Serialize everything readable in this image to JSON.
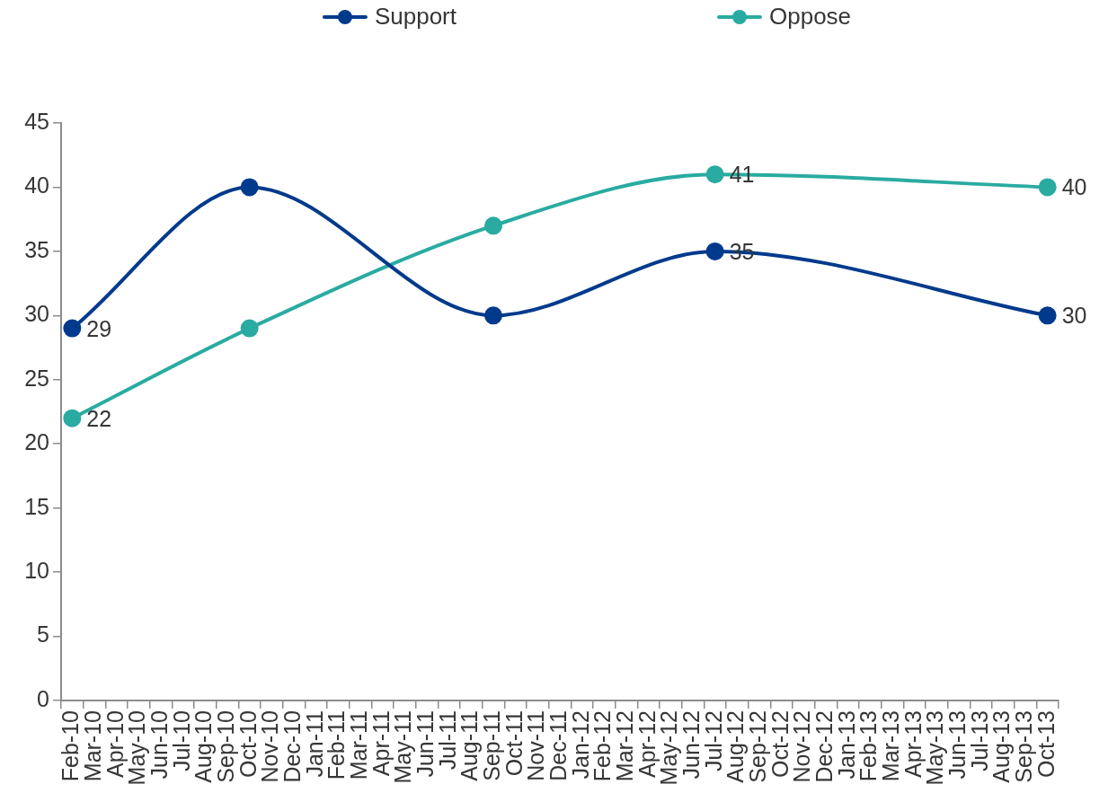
{
  "chart_data": {
    "type": "line",
    "categories": [
      "Feb-10",
      "Mar-10",
      "Apr-10",
      "May-10",
      "Jun-10",
      "Jul-10",
      "Aug-10",
      "Sep-10",
      "Oct-10",
      "Nov-10",
      "Dec-10",
      "Jan-11",
      "Feb-11",
      "Mar-11",
      "Apr-11",
      "May-11",
      "Jun-11",
      "Jul-11",
      "Aug-11",
      "Sep-11",
      "Oct-11",
      "Nov-11",
      "Dec-11",
      "Jan-12",
      "Feb-12",
      "Mar-12",
      "Apr-12",
      "May-12",
      "Jun-12",
      "Jul-12",
      "Aug-12",
      "Sep-12",
      "Oct-12",
      "Nov-12",
      "Dec-12",
      "Jan-13",
      "Feb-13",
      "Mar-13",
      "Apr-13",
      "May-13",
      "Jun-13",
      "Jul-13",
      "Aug-13",
      "Sep-13",
      "Oct-13"
    ],
    "series": [
      {
        "name": "Support",
        "color": "#003a8c",
        "values": [
          29,
          null,
          null,
          null,
          null,
          null,
          null,
          null,
          40,
          null,
          null,
          null,
          null,
          null,
          null,
          null,
          null,
          null,
          null,
          30,
          null,
          null,
          null,
          null,
          null,
          null,
          null,
          null,
          null,
          35,
          null,
          null,
          null,
          null,
          null,
          null,
          null,
          null,
          null,
          null,
          null,
          null,
          null,
          null,
          30
        ],
        "value_labels": [
          "29",
          null,
          null,
          null,
          null,
          null,
          null,
          null,
          null,
          null,
          null,
          null,
          null,
          null,
          null,
          null,
          null,
          null,
          null,
          null,
          null,
          null,
          null,
          null,
          null,
          null,
          null,
          null,
          null,
          "35",
          null,
          null,
          null,
          null,
          null,
          null,
          null,
          null,
          null,
          null,
          null,
          null,
          null,
          null,
          "30"
        ]
      },
      {
        "name": "Oppose",
        "color": "#2aaba1",
        "values": [
          22,
          null,
          null,
          null,
          null,
          null,
          null,
          null,
          29,
          null,
          null,
          null,
          null,
          null,
          null,
          null,
          null,
          null,
          null,
          37,
          null,
          null,
          null,
          null,
          null,
          null,
          null,
          null,
          null,
          41,
          null,
          null,
          null,
          null,
          null,
          null,
          null,
          null,
          null,
          null,
          null,
          null,
          null,
          null,
          40
        ],
        "value_labels": [
          "22",
          null,
          null,
          null,
          null,
          null,
          null,
          null,
          null,
          null,
          null,
          null,
          null,
          null,
          null,
          null,
          null,
          null,
          null,
          null,
          null,
          null,
          null,
          null,
          null,
          null,
          null,
          null,
          null,
          "41",
          null,
          null,
          null,
          null,
          null,
          null,
          null,
          null,
          null,
          null,
          null,
          null,
          null,
          null,
          "40"
        ]
      }
    ],
    "ylim": [
      0,
      45
    ],
    "yticks": [
      0,
      5,
      10,
      15,
      20,
      25,
      30,
      35,
      40,
      45
    ],
    "grid": false,
    "legend": "top",
    "marker": "circle",
    "line_style": "solid"
  }
}
